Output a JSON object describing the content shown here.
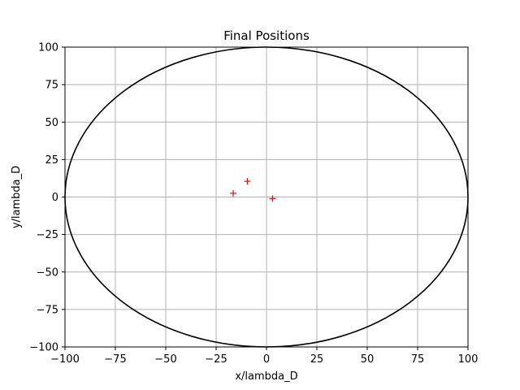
{
  "chart_data": {
    "type": "scatter",
    "title": "Final Positions",
    "xlabel": "x/lambda_D",
    "ylabel": "y/lambda_D",
    "xlim": [
      -100,
      100
    ],
    "ylim": [
      -100,
      100
    ],
    "x_ticks": [
      -100,
      -75,
      -50,
      -25,
      0,
      25,
      50,
      75,
      100
    ],
    "y_ticks": [
      -100,
      -75,
      -50,
      -25,
      0,
      25,
      50,
      75,
      100
    ],
    "x_tick_labels": [
      "−100",
      "−75",
      "−50",
      "−25",
      "0",
      "25",
      "50",
      "75",
      "100"
    ],
    "y_tick_labels": [
      "−100",
      "−75",
      "−50",
      "−25",
      "0",
      "25",
      "50",
      "75",
      "100"
    ],
    "grid": true,
    "boundary_circle": {
      "center": [
        0,
        0
      ],
      "radius": 100,
      "color": "#000000"
    },
    "series": [
      {
        "marker": "+",
        "color": "#ff0000",
        "points": [
          {
            "x": -16.5,
            "y": 2.5
          },
          {
            "x": -9.5,
            "y": 10.5
          },
          {
            "x": 3.0,
            "y": -1.0
          }
        ]
      }
    ]
  }
}
